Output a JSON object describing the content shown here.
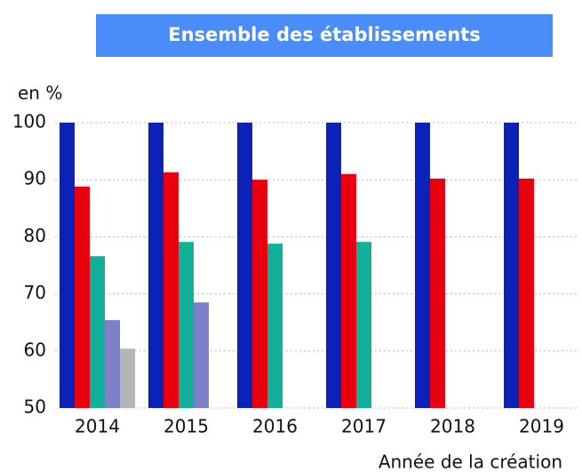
{
  "chart_data": {
    "type": "bar",
    "title": "Ensemble des établissements",
    "y_unit": "en %",
    "x_label": "Année de la création",
    "categories": [
      "2014",
      "2015",
      "2016",
      "2017",
      "2018",
      "2019"
    ],
    "series": [
      {
        "color": "#0a22b8",
        "values": [
          100,
          100,
          100,
          100,
          100,
          100
        ]
      },
      {
        "color": "#e8000f",
        "values": [
          88.8,
          91.3,
          90.0,
          91.0,
          90.2,
          90.2
        ]
      },
      {
        "color": "#10b09a",
        "values": [
          76.6,
          79.1,
          78.8,
          79.1,
          null,
          null
        ]
      },
      {
        "color": "#7b80c8",
        "values": [
          65.4,
          68.5,
          null,
          null,
          null,
          null
        ]
      },
      {
        "color": "#b5b5b5",
        "values": [
          60.4,
          null,
          null,
          null,
          null,
          null
        ]
      }
    ],
    "ylim": [
      50,
      100
    ],
    "yticks": [
      50,
      60,
      70,
      80,
      90,
      100
    ],
    "grid": true,
    "title_box_color": "#4a8cfa"
  }
}
